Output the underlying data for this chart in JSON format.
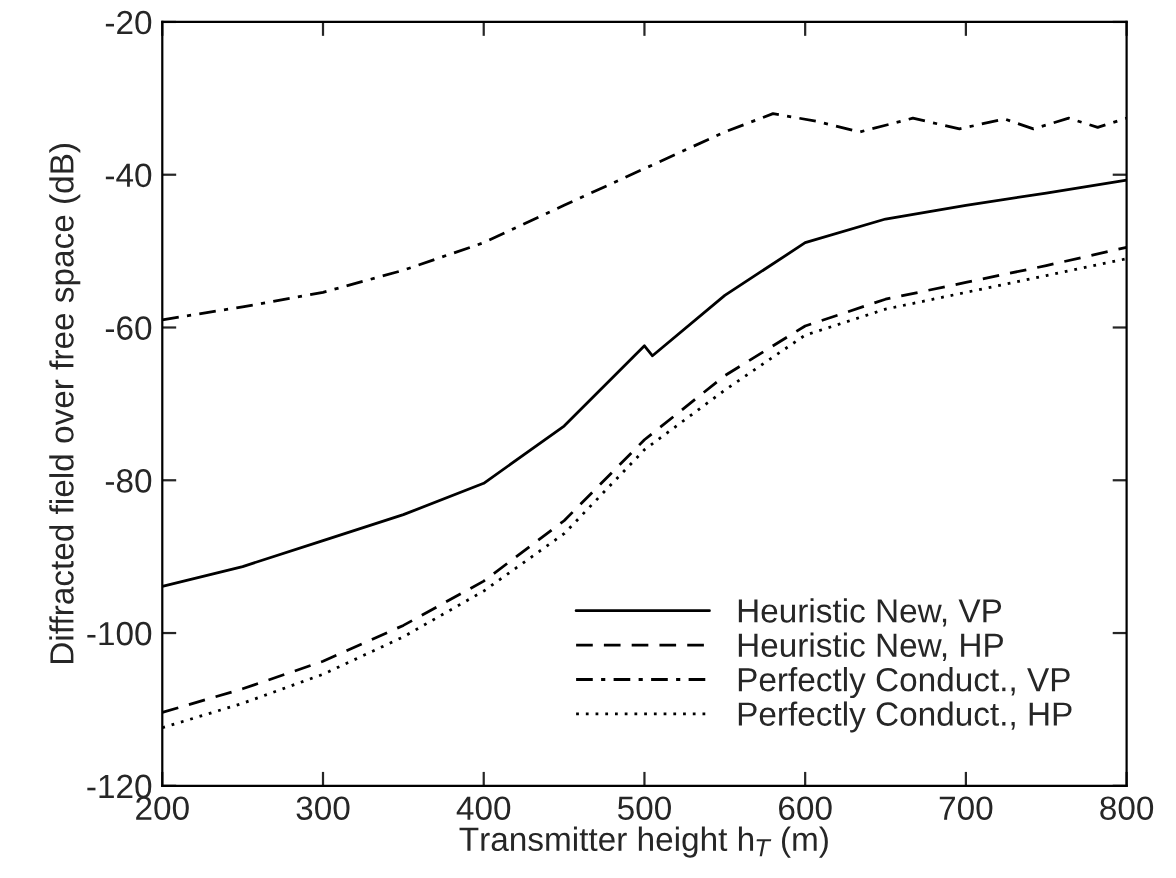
{
  "chart_data": {
    "type": "line",
    "xlabel": "Transmitter height h$_{T}$ (m)",
    "ylabel": "Diffracted field over free space (dB)",
    "xlim": [
      200,
      800
    ],
    "xticks": [
      200,
      300,
      400,
      500,
      600,
      700,
      800
    ],
    "ylim": [
      -120,
      -20
    ],
    "yticks": [
      -120,
      -100,
      -80,
      -60,
      -40,
      -20
    ],
    "grid": false,
    "legend": "bottom right",
    "marker": "none",
    "series": [
      {
        "name": "Heuristic New, VP",
        "color": "#000000",
        "line_style": "solid",
        "x": [
          200,
          250,
          300,
          350,
          400,
          450,
          500,
          505,
          550,
          600,
          650,
          700,
          750,
          800
        ],
        "values": [
          -93.9,
          -91.3,
          -87.9,
          -84.5,
          -80.4,
          -72.9,
          -62.4,
          -63.7,
          -55.8,
          -48.9,
          -45.8,
          -44,
          -42.4,
          -40.7
        ]
      },
      {
        "name": "Heuristic New, HP",
        "color": "#000000",
        "line_style": "dashed",
        "x": [
          200,
          250,
          300,
          350,
          400,
          450,
          500,
          550,
          600,
          650,
          700,
          750,
          800
        ],
        "values": [
          -110.4,
          -107.3,
          -103.7,
          -99,
          -93.2,
          -85.3,
          -74.7,
          -66.3,
          -59.8,
          -56.3,
          -54.1,
          -51.9,
          -49.5
        ]
      },
      {
        "name": "Perfectly Conduct., VP",
        "color": "#000000",
        "line_style": "dashdot",
        "x": [
          200,
          250,
          300,
          350,
          400,
          450,
          500,
          550,
          580,
          607,
          634,
          667,
          696,
          724,
          742,
          764,
          782,
          800
        ],
        "values": [
          -59,
          -57.3,
          -55.4,
          -52.5,
          -48.9,
          -44,
          -39.2,
          -34.4,
          -32,
          -33,
          -34.4,
          -32.6,
          -34,
          -32.7,
          -34,
          -32.6,
          -33.8,
          -32.6
        ]
      },
      {
        "name": "Perfectly Conduct., HP",
        "color": "#000000",
        "line_style": "dotted",
        "x": [
          200,
          250,
          300,
          350,
          400,
          450,
          500,
          550,
          600,
          650,
          700,
          750,
          800
        ],
        "values": [
          -112.4,
          -109.2,
          -105.4,
          -100.5,
          -94.5,
          -87,
          -76,
          -68.2,
          -61,
          -57.6,
          -55.4,
          -53.2,
          -51
        ]
      }
    ]
  }
}
